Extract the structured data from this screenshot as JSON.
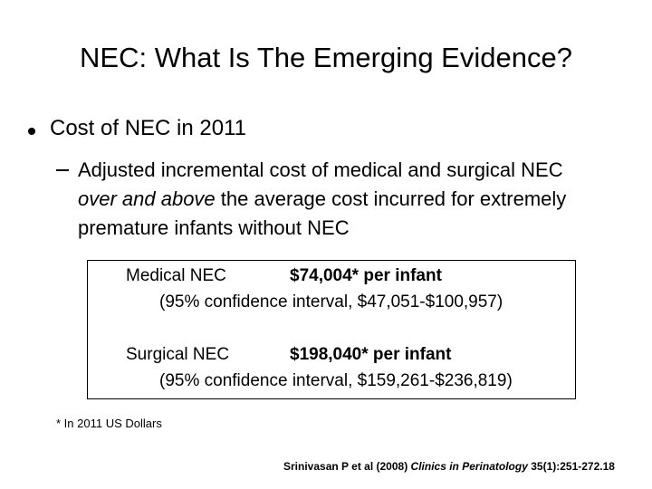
{
  "slide": {
    "title": "NEC: What Is The Emerging Evidence?",
    "bullet": "Cost of NEC in 2011",
    "sub_bullet": {
      "before": "Adjusted incremental cost of medical and surgical NEC ",
      "emphasis": "over and above",
      "after": " the average cost incurred for extremely premature infants without NEC"
    },
    "box": [
      {
        "label": "Medical NEC",
        "cost": "$74,004* per infant",
        "interval": "(95% confidence interval, $47,051-$100,957)"
      },
      {
        "label": "Surgical NEC",
        "cost": "$198,040* per infant",
        "interval": "(95% confidence interval, $159,261-$236,819)"
      }
    ],
    "footnote": "* In 2011 US Dollars",
    "citation": {
      "authors": "Srinivasan P et al (2008) ",
      "journal": "Clinics in Perinatology",
      "details": " 35(1):251-272.18"
    }
  }
}
